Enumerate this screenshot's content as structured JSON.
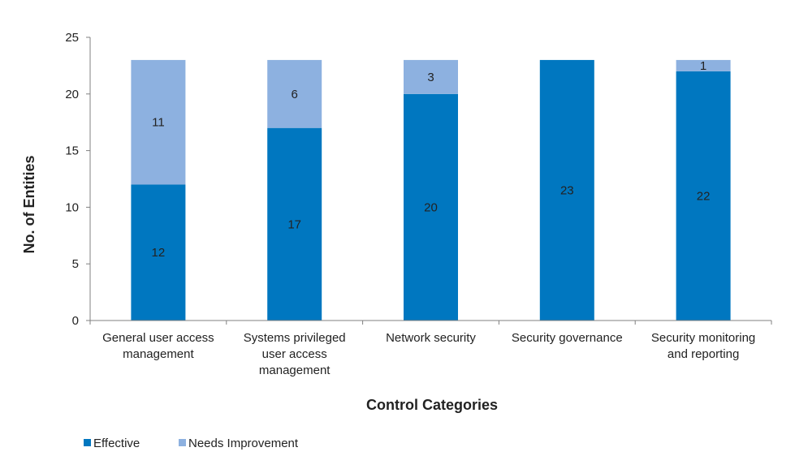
{
  "chart_data": {
    "type": "bar",
    "stacked": true,
    "categories": [
      [
        "General user access",
        "management"
      ],
      [
        "Systems privileged",
        "user access",
        "management"
      ],
      [
        "Network security"
      ],
      [
        "Security governance"
      ],
      [
        "Security monitoring",
        "and reporting"
      ]
    ],
    "series": [
      {
        "name": "Effective",
        "color": "#0077c0",
        "values": [
          12,
          17,
          20,
          23,
          22
        ]
      },
      {
        "name": "Needs Improvement",
        "color": "#8db1e0",
        "values": [
          11,
          6,
          3,
          0,
          1
        ]
      }
    ],
    "xlabel": "Control Categories",
    "ylabel": "No. of Entities",
    "ylim": [
      0,
      25
    ],
    "yticks": [
      0,
      5,
      10,
      15,
      20,
      25
    ],
    "grid": false,
    "legend_position": "bottom-left"
  }
}
